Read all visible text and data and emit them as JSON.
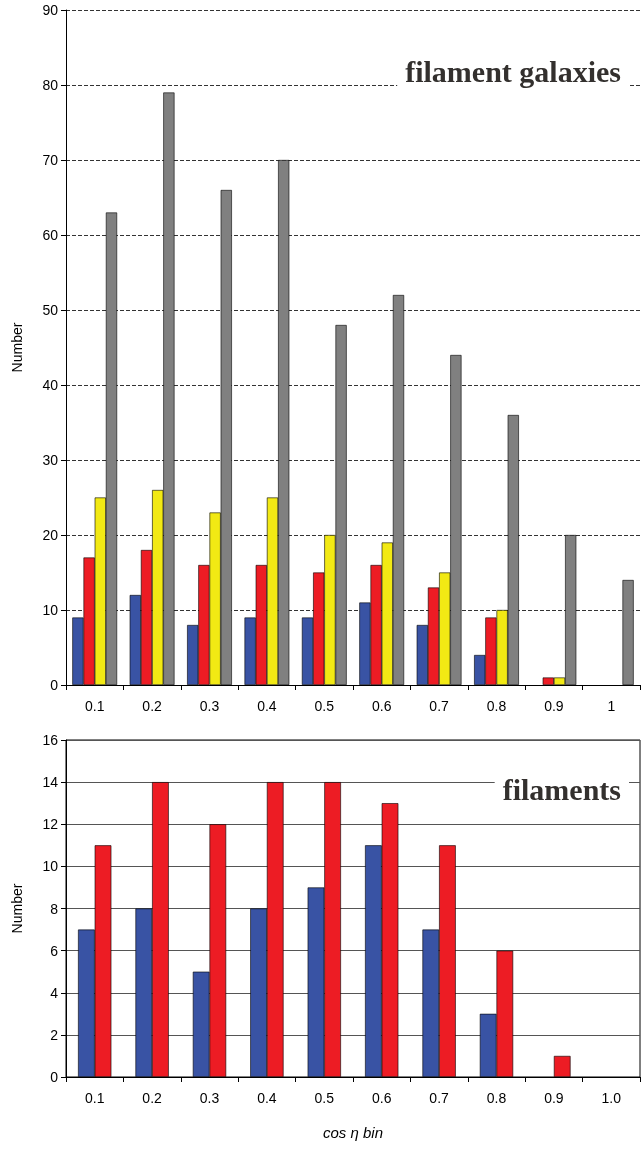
{
  "chart_data": [
    {
      "type": "bar",
      "title": "filament galaxies",
      "ylabel": "Number",
      "categories": [
        "0.1",
        "0.2",
        "0.3",
        "0.4",
        "0.5",
        "0.6",
        "0.7",
        "0.8",
        "0.9",
        "1"
      ],
      "series": [
        {
          "color": "#3953a4",
          "values": [
            9,
            12,
            8,
            9,
            9,
            11,
            8,
            4,
            0,
            0
          ]
        },
        {
          "color": "#ed1c24",
          "values": [
            17,
            18,
            16,
            16,
            15,
            16,
            13,
            9,
            1,
            0
          ]
        },
        {
          "color": "#f2e914",
          "values": [
            25,
            26,
            23,
            25,
            20,
            19,
            15,
            10,
            1,
            0
          ]
        },
        {
          "color": "#808080",
          "values": [
            63,
            79,
            66,
            70,
            48,
            52,
            44,
            36,
            20,
            14
          ]
        }
      ],
      "ylim": [
        0,
        90
      ],
      "yticks": [
        0,
        10,
        20,
        30,
        40,
        50,
        60,
        70,
        80,
        90
      ],
      "grid": "y",
      "line_style": "dashed"
    },
    {
      "type": "bar",
      "title": "filaments",
      "ylabel": "Number",
      "xlabel": "cos η bin",
      "categories": [
        "0.1",
        "0.2",
        "0.3",
        "0.4",
        "0.5",
        "0.6",
        "0.7",
        "0.8",
        "0.9",
        "1.0"
      ],
      "series": [
        {
          "color": "#3953a4",
          "values": [
            7,
            8,
            5,
            8,
            9,
            11,
            7,
            3,
            0,
            0
          ]
        },
        {
          "color": "#ed1c24",
          "values": [
            11,
            14,
            12,
            14,
            14,
            13,
            11,
            6,
            1,
            0
          ]
        }
      ],
      "ylim": [
        0,
        16
      ],
      "yticks": [
        0,
        2,
        4,
        6,
        8,
        10,
        12,
        14,
        16
      ],
      "grid": "y",
      "line_style": "solid"
    }
  ]
}
